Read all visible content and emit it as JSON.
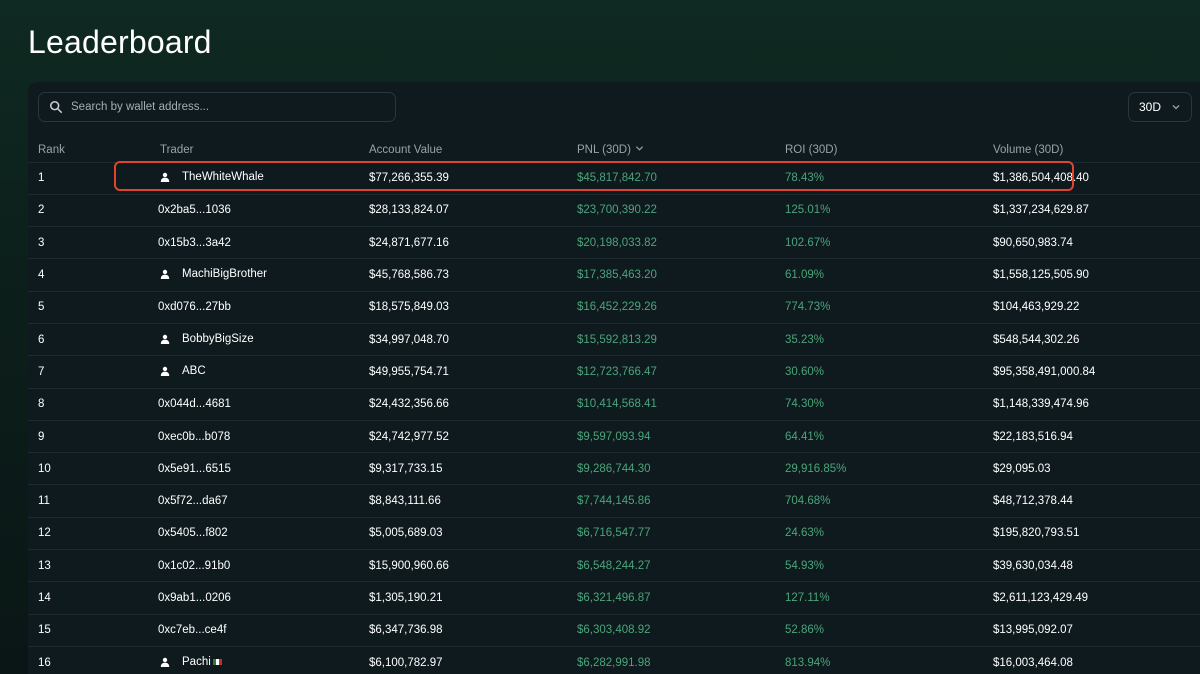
{
  "page": {
    "title": "Leaderboard"
  },
  "search": {
    "placeholder": "Search by wallet address..."
  },
  "period": {
    "selected": "30D"
  },
  "columns": {
    "rank": "Rank",
    "trader": "Trader",
    "account_value": "Account Value",
    "pnl": "PNL (30D)",
    "roi": "ROI (30D)",
    "volume": "Volume (30D)"
  },
  "colors": {
    "accent_green": "#4aa57a",
    "highlight": "#e0442e"
  },
  "rows": [
    {
      "rank": "1",
      "trader": "TheWhiteWhale",
      "named": true,
      "account_value": "$77,266,355.39",
      "pnl": "$45,817,842.70",
      "roi": "78.43%",
      "volume": "$1,386,504,408.40"
    },
    {
      "rank": "2",
      "trader": "0x2ba5...1036",
      "named": false,
      "account_value": "$28,133,824.07",
      "pnl": "$23,700,390.22",
      "roi": "125.01%",
      "volume": "$1,337,234,629.87"
    },
    {
      "rank": "3",
      "trader": "0x15b3...3a42",
      "named": false,
      "account_value": "$24,871,677.16",
      "pnl": "$20,198,033.82",
      "roi": "102.67%",
      "volume": "$90,650,983.74"
    },
    {
      "rank": "4",
      "trader": "MachiBigBrother",
      "named": true,
      "account_value": "$45,768,586.73",
      "pnl": "$17,385,463.20",
      "roi": "61.09%",
      "volume": "$1,558,125,505.90"
    },
    {
      "rank": "5",
      "trader": "0xd076...27bb",
      "named": false,
      "account_value": "$18,575,849.03",
      "pnl": "$16,452,229.26",
      "roi": "774.73%",
      "volume": "$104,463,929.22"
    },
    {
      "rank": "6",
      "trader": "BobbyBigSize",
      "named": true,
      "account_value": "$34,997,048.70",
      "pnl": "$15,592,813.29",
      "roi": "35.23%",
      "volume": "$548,544,302.26"
    },
    {
      "rank": "7",
      "trader": "ABC",
      "named": true,
      "account_value": "$49,955,754.71",
      "pnl": "$12,723,766.47",
      "roi": "30.60%",
      "volume": "$95,358,491,000.84"
    },
    {
      "rank": "8",
      "trader": "0x044d...4681",
      "named": false,
      "account_value": "$24,432,356.66",
      "pnl": "$10,414,568.41",
      "roi": "74.30%",
      "volume": "$1,148,339,474.96"
    },
    {
      "rank": "9",
      "trader": "0xec0b...b078",
      "named": false,
      "account_value": "$24,742,977.52",
      "pnl": "$9,597,093.94",
      "roi": "64.41%",
      "volume": "$22,183,516.94"
    },
    {
      "rank": "10",
      "trader": "0x5e91...6515",
      "named": false,
      "account_value": "$9,317,733.15",
      "pnl": "$9,286,744.30",
      "roi": "29,916.85%",
      "volume": "$29,095.03"
    },
    {
      "rank": "11",
      "trader": "0x5f72...da67",
      "named": false,
      "account_value": "$8,843,111.66",
      "pnl": "$7,744,145.86",
      "roi": "704.68%",
      "volume": "$48,712,378.44"
    },
    {
      "rank": "12",
      "trader": "0x5405...f802",
      "named": false,
      "account_value": "$5,005,689.03",
      "pnl": "$6,716,547.77",
      "roi": "24.63%",
      "volume": "$195,820,793.51"
    },
    {
      "rank": "13",
      "trader": "0x1c02...91b0",
      "named": false,
      "account_value": "$15,900,960.66",
      "pnl": "$6,548,244.27",
      "roi": "54.93%",
      "volume": "$39,630,034.48"
    },
    {
      "rank": "14",
      "trader": "0x9ab1...0206",
      "named": false,
      "account_value": "$1,305,190.21",
      "pnl": "$6,321,496.87",
      "roi": "127.11%",
      "volume": "$2,611,123,429.49"
    },
    {
      "rank": "15",
      "trader": "0xc7eb...ce4f",
      "named": false,
      "account_value": "$6,347,736.98",
      "pnl": "$6,303,408.92",
      "roi": "52.86%",
      "volume": "$13,995,092.07"
    },
    {
      "rank": "16",
      "trader": "Pachi",
      "named": true,
      "flag": true,
      "account_value": "$6,100,782.97",
      "pnl": "$6,282,991.98",
      "roi": "813.94%",
      "volume": "$16,003,464.08"
    }
  ]
}
